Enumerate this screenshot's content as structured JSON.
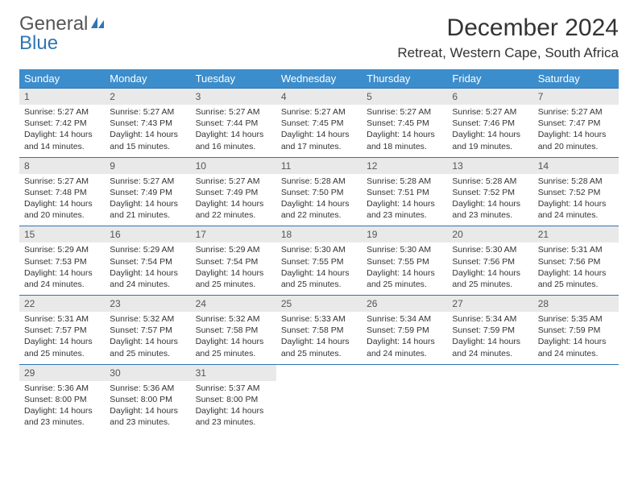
{
  "logo": {
    "text1": "General",
    "text2": "Blue"
  },
  "title": "December 2024",
  "location": "Retreat, Western Cape, South Africa",
  "colors": {
    "header_bg": "#3c8dcc",
    "border": "#2f75b5",
    "daynum_bg": "#e9e9e9"
  },
  "dayHeaders": [
    "Sunday",
    "Monday",
    "Tuesday",
    "Wednesday",
    "Thursday",
    "Friday",
    "Saturday"
  ],
  "days": [
    {
      "n": "1",
      "sr": "5:27 AM",
      "ss": "7:42 PM",
      "dl": "14 hours and 14 minutes."
    },
    {
      "n": "2",
      "sr": "5:27 AM",
      "ss": "7:43 PM",
      "dl": "14 hours and 15 minutes."
    },
    {
      "n": "3",
      "sr": "5:27 AM",
      "ss": "7:44 PM",
      "dl": "14 hours and 16 minutes."
    },
    {
      "n": "4",
      "sr": "5:27 AM",
      "ss": "7:45 PM",
      "dl": "14 hours and 17 minutes."
    },
    {
      "n": "5",
      "sr": "5:27 AM",
      "ss": "7:45 PM",
      "dl": "14 hours and 18 minutes."
    },
    {
      "n": "6",
      "sr": "5:27 AM",
      "ss": "7:46 PM",
      "dl": "14 hours and 19 minutes."
    },
    {
      "n": "7",
      "sr": "5:27 AM",
      "ss": "7:47 PM",
      "dl": "14 hours and 20 minutes."
    },
    {
      "n": "8",
      "sr": "5:27 AM",
      "ss": "7:48 PM",
      "dl": "14 hours and 20 minutes."
    },
    {
      "n": "9",
      "sr": "5:27 AM",
      "ss": "7:49 PM",
      "dl": "14 hours and 21 minutes."
    },
    {
      "n": "10",
      "sr": "5:27 AM",
      "ss": "7:49 PM",
      "dl": "14 hours and 22 minutes."
    },
    {
      "n": "11",
      "sr": "5:28 AM",
      "ss": "7:50 PM",
      "dl": "14 hours and 22 minutes."
    },
    {
      "n": "12",
      "sr": "5:28 AM",
      "ss": "7:51 PM",
      "dl": "14 hours and 23 minutes."
    },
    {
      "n": "13",
      "sr": "5:28 AM",
      "ss": "7:52 PM",
      "dl": "14 hours and 23 minutes."
    },
    {
      "n": "14",
      "sr": "5:28 AM",
      "ss": "7:52 PM",
      "dl": "14 hours and 24 minutes."
    },
    {
      "n": "15",
      "sr": "5:29 AM",
      "ss": "7:53 PM",
      "dl": "14 hours and 24 minutes."
    },
    {
      "n": "16",
      "sr": "5:29 AM",
      "ss": "7:54 PM",
      "dl": "14 hours and 24 minutes."
    },
    {
      "n": "17",
      "sr": "5:29 AM",
      "ss": "7:54 PM",
      "dl": "14 hours and 25 minutes."
    },
    {
      "n": "18",
      "sr": "5:30 AM",
      "ss": "7:55 PM",
      "dl": "14 hours and 25 minutes."
    },
    {
      "n": "19",
      "sr": "5:30 AM",
      "ss": "7:55 PM",
      "dl": "14 hours and 25 minutes."
    },
    {
      "n": "20",
      "sr": "5:30 AM",
      "ss": "7:56 PM",
      "dl": "14 hours and 25 minutes."
    },
    {
      "n": "21",
      "sr": "5:31 AM",
      "ss": "7:56 PM",
      "dl": "14 hours and 25 minutes."
    },
    {
      "n": "22",
      "sr": "5:31 AM",
      "ss": "7:57 PM",
      "dl": "14 hours and 25 minutes."
    },
    {
      "n": "23",
      "sr": "5:32 AM",
      "ss": "7:57 PM",
      "dl": "14 hours and 25 minutes."
    },
    {
      "n": "24",
      "sr": "5:32 AM",
      "ss": "7:58 PM",
      "dl": "14 hours and 25 minutes."
    },
    {
      "n": "25",
      "sr": "5:33 AM",
      "ss": "7:58 PM",
      "dl": "14 hours and 25 minutes."
    },
    {
      "n": "26",
      "sr": "5:34 AM",
      "ss": "7:59 PM",
      "dl": "14 hours and 24 minutes."
    },
    {
      "n": "27",
      "sr": "5:34 AM",
      "ss": "7:59 PM",
      "dl": "14 hours and 24 minutes."
    },
    {
      "n": "28",
      "sr": "5:35 AM",
      "ss": "7:59 PM",
      "dl": "14 hours and 24 minutes."
    },
    {
      "n": "29",
      "sr": "5:36 AM",
      "ss": "8:00 PM",
      "dl": "14 hours and 23 minutes."
    },
    {
      "n": "30",
      "sr": "5:36 AM",
      "ss": "8:00 PM",
      "dl": "14 hours and 23 minutes."
    },
    {
      "n": "31",
      "sr": "5:37 AM",
      "ss": "8:00 PM",
      "dl": "14 hours and 23 minutes."
    }
  ],
  "labels": {
    "sunrise": "Sunrise: ",
    "sunset": "Sunset: ",
    "daylight": "Daylight: "
  }
}
